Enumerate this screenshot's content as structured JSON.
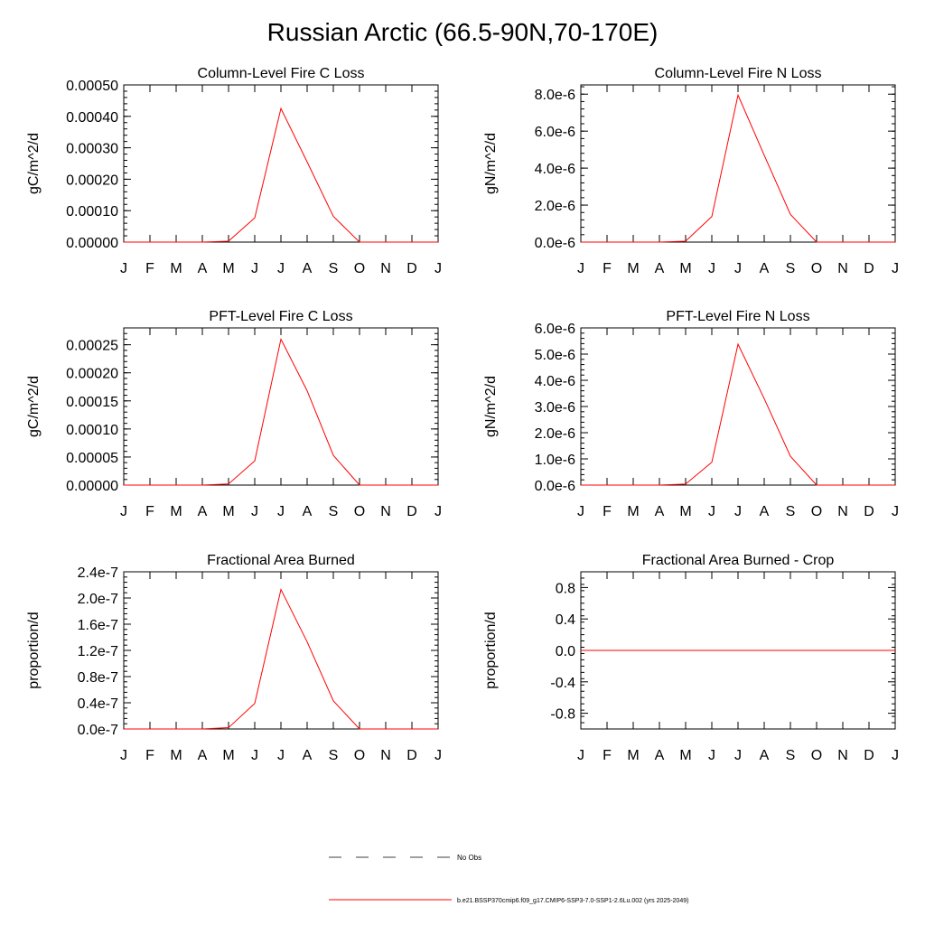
{
  "title": "Russian Arctic (66.5-90N,70-170E)",
  "months": [
    "J",
    "F",
    "M",
    "A",
    "M",
    "J",
    "J",
    "A",
    "S",
    "O",
    "N",
    "D",
    "J"
  ],
  "colors": {
    "model_line": "#ff0000",
    "obs_line": "#000000",
    "axis": "#000000"
  },
  "legend": {
    "obs_label": "No Obs",
    "model_label": "b.e21.BSSP370cmip6.f09_g17.CMIP6-SSP3-7.0-SSP1-2.6Lu.002 (yrs 2025-2049)"
  },
  "chart_data": [
    {
      "type": "line",
      "title": "Column-Level Fire C Loss",
      "ylabel": "gC/m^2/d",
      "ylim": [
        0,
        0.0005
      ],
      "yticks": [
        0,
        0.0001,
        0.0002,
        0.0003,
        0.0004,
        0.0005
      ],
      "yticklabels": [
        "0.00000",
        "0.00010",
        "0.00020",
        "0.00030",
        "0.00040",
        "0.00050"
      ],
      "x": [
        "J",
        "F",
        "M",
        "A",
        "M",
        "J",
        "J",
        "A",
        "S",
        "O",
        "N",
        "D",
        "J"
      ],
      "series": [
        {
          "name": "b.e21.BSSP370cmip6.f09_g17.CMIP6-SSP3-7.0-SSP1-2.6Lu.002 (yrs 2025-2049)",
          "values": [
            0,
            0,
            0,
            0,
            3e-06,
            7.7e-05,
            0.000425,
            0.000255,
            8.2e-05,
            0,
            0,
            0,
            0
          ]
        }
      ]
    },
    {
      "type": "line",
      "title": "Column-Level Fire N Loss",
      "ylabel": "gN/m^2/d",
      "ylim": [
        0,
        8.5e-06
      ],
      "yticks": [
        0,
        2e-06,
        4e-06,
        6e-06,
        8e-06
      ],
      "yticklabels": [
        "0.0e-6",
        "2.0e-6",
        "4.0e-6",
        "6.0e-6",
        "8.0e-6"
      ],
      "x": [
        "J",
        "F",
        "M",
        "A",
        "M",
        "J",
        "J",
        "A",
        "S",
        "O",
        "N",
        "D",
        "J"
      ],
      "series": [
        {
          "name": "b.e21.BSSP370cmip6.f09_g17.CMIP6-SSP3-7.0-SSP1-2.6Lu.002 (yrs 2025-2049)",
          "values": [
            0,
            0,
            0,
            0,
            5e-08,
            1.38e-06,
            7.95e-06,
            4.7e-06,
            1.5e-06,
            0,
            0,
            0,
            0
          ]
        }
      ]
    },
    {
      "type": "line",
      "title": "PFT-Level Fire C Loss",
      "ylabel": "gC/m^2/d",
      "ylim": [
        0,
        0.00028
      ],
      "yticks": [
        0,
        5e-05,
        0.0001,
        0.00015,
        0.0002,
        0.00025
      ],
      "yticklabels": [
        "0.00000",
        "0.00005",
        "0.00010",
        "0.00015",
        "0.00020",
        "0.00025"
      ],
      "x": [
        "J",
        "F",
        "M",
        "A",
        "M",
        "J",
        "J",
        "A",
        "S",
        "O",
        "N",
        "D",
        "J"
      ],
      "series": [
        {
          "name": "b.e21.BSSP370cmip6.f09_g17.CMIP6-SSP3-7.0-SSP1-2.6Lu.002 (yrs 2025-2049)",
          "values": [
            0,
            0,
            0,
            0,
            2e-06,
            4.3e-05,
            0.00026,
            0.000168,
            5.3e-05,
            0,
            0,
            0,
            0
          ]
        }
      ]
    },
    {
      "type": "line",
      "title": "PFT-Level Fire N Loss",
      "ylabel": "gN/m^2/d",
      "ylim": [
        0,
        6e-06
      ],
      "yticks": [
        0,
        1e-06,
        2e-06,
        3e-06,
        4e-06,
        5e-06,
        6e-06
      ],
      "yticklabels": [
        "0.0e-6",
        "1.0e-6",
        "2.0e-6",
        "3.0e-6",
        "4.0e-6",
        "5.0e-6",
        "6.0e-6"
      ],
      "x": [
        "J",
        "F",
        "M",
        "A",
        "M",
        "J",
        "J",
        "A",
        "S",
        "O",
        "N",
        "D",
        "J"
      ],
      "series": [
        {
          "name": "b.e21.BSSP370cmip6.f09_g17.CMIP6-SSP3-7.0-SSP1-2.6Lu.002 (yrs 2025-2049)",
          "values": [
            0,
            0,
            0,
            0,
            4e-08,
            8.7e-07,
            5.38e-06,
            3.3e-06,
            1.1e-06,
            0,
            0,
            0,
            0
          ]
        }
      ]
    },
    {
      "type": "line",
      "title": "Fractional Area Burned",
      "ylabel": "proportion/d",
      "ylim": [
        0,
        2.4e-07
      ],
      "yticks": [
        0,
        4e-08,
        8e-08,
        1.2e-07,
        1.6e-07,
        2e-07,
        2.4e-07
      ],
      "yticklabels": [
        "0.0e-7",
        "0.4e-7",
        "0.8e-7",
        "1.2e-7",
        "1.6e-7",
        "2.0e-7",
        "2.4e-7"
      ],
      "x": [
        "J",
        "F",
        "M",
        "A",
        "M",
        "J",
        "J",
        "A",
        "S",
        "O",
        "N",
        "D",
        "J"
      ],
      "series": [
        {
          "name": "b.e21.BSSP370cmip6.f09_g17.CMIP6-SSP3-7.0-SSP1-2.6Lu.002 (yrs 2025-2049)",
          "values": [
            0,
            0,
            0,
            0,
            2e-09,
            3.9e-08,
            2.13e-07,
            1.33e-07,
            4.3e-08,
            0,
            0,
            0,
            0
          ]
        }
      ]
    },
    {
      "type": "line",
      "title": "Fractional Area Burned - Crop",
      "ylabel": "proportion/d",
      "ylim": [
        -1,
        1
      ],
      "yticks": [
        -0.8,
        -0.4,
        0,
        0.4,
        0.8
      ],
      "yticklabels": [
        "-0.8",
        "-0.4",
        "0.0",
        "0.4",
        "0.8"
      ],
      "x": [
        "J",
        "F",
        "M",
        "A",
        "M",
        "J",
        "J",
        "A",
        "S",
        "O",
        "N",
        "D",
        "J"
      ],
      "series": [
        {
          "name": "b.e21.BSSP370cmip6.f09_g17.CMIP6-SSP3-7.0-SSP1-2.6Lu.002 (yrs 2025-2049)",
          "values": [
            0,
            0,
            0,
            0,
            0,
            0,
            0,
            0,
            0,
            0,
            0,
            0,
            0
          ]
        }
      ]
    }
  ]
}
